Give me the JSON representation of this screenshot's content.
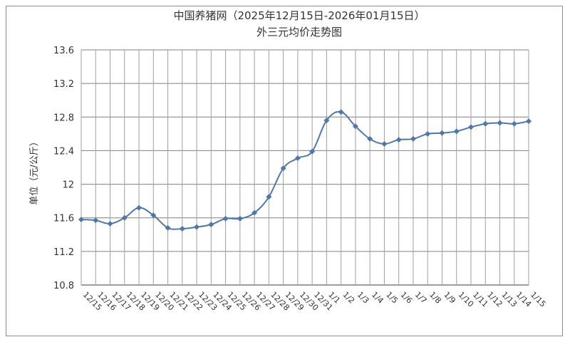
{
  "chart_data": {
    "type": "line",
    "title": "中国养猪网（2025年12月15日-2026年01月15日）",
    "subtitle": "外三元均价走势图",
    "xlabel": "",
    "ylabel": "单位（元/公斤）",
    "ylim": [
      10.8,
      13.6
    ],
    "yticks": [
      "10.8",
      "11.2",
      "11.6",
      "12",
      "12.4",
      "12.8",
      "13.2",
      "13.6"
    ],
    "grid": true,
    "legend": "none",
    "colors": {
      "line": "#4f77a8",
      "marker": "#4f77a8",
      "grid": "#808080"
    },
    "categories": [
      "12/15",
      "12/16",
      "12/17",
      "12/18",
      "12/19",
      "12/20",
      "12/21",
      "12/22",
      "12/23",
      "12/24",
      "12/25",
      "12/26",
      "12/27",
      "12/28",
      "12/29",
      "12/30",
      "12/31",
      "1/1",
      "1/2",
      "1/3",
      "1/4",
      "1/5",
      "1/6",
      "1/7",
      "1/8",
      "1/9",
      "1/10",
      "1/11",
      "1/12",
      "1/13",
      "1/14",
      "1/15"
    ],
    "series": [
      {
        "values": [
          11.58,
          11.57,
          11.53,
          11.6,
          11.72,
          11.63,
          11.48,
          11.47,
          11.49,
          11.52,
          11.59,
          11.59,
          11.66,
          11.85,
          12.19,
          12.31,
          12.39,
          12.76,
          12.86,
          12.69,
          12.54,
          12.48,
          12.53,
          12.54,
          12.6,
          12.61,
          12.63,
          12.68,
          12.72,
          12.73,
          12.72,
          12.75
        ]
      }
    ]
  }
}
